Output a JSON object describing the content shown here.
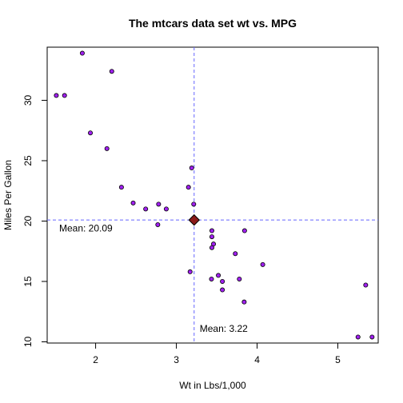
{
  "chart_data": {
    "type": "scatter",
    "title": "The mtcars data set wt vs. MPG",
    "xlabel": "Wt in Lbs/1,000",
    "ylabel": "Miles Per Gallon",
    "xlim": [
      1.4,
      5.5
    ],
    "ylim": [
      9.9,
      34.4
    ],
    "xticks": [
      2,
      3,
      4,
      5
    ],
    "yticks": [
      10,
      15,
      20,
      25,
      30
    ],
    "point_color": "#a020f0",
    "point_fill": "#a020f0",
    "mean_line_color": "#6666ff",
    "mean_marker_color": "#8b1a1a",
    "points": [
      {
        "x": 2.62,
        "y": 21.0
      },
      {
        "x": 2.875,
        "y": 21.0
      },
      {
        "x": 2.32,
        "y": 22.8
      },
      {
        "x": 3.215,
        "y": 21.4
      },
      {
        "x": 3.44,
        "y": 18.7
      },
      {
        "x": 3.46,
        "y": 18.1
      },
      {
        "x": 3.57,
        "y": 14.3
      },
      {
        "x": 3.19,
        "y": 24.4
      },
      {
        "x": 3.15,
        "y": 22.8
      },
      {
        "x": 3.44,
        "y": 19.2
      },
      {
        "x": 3.44,
        "y": 17.8
      },
      {
        "x": 4.07,
        "y": 16.4
      },
      {
        "x": 3.73,
        "y": 17.3
      },
      {
        "x": 3.78,
        "y": 15.2
      },
      {
        "x": 5.25,
        "y": 10.4
      },
      {
        "x": 5.424,
        "y": 10.4
      },
      {
        "x": 5.345,
        "y": 14.7
      },
      {
        "x": 2.2,
        "y": 32.4
      },
      {
        "x": 1.615,
        "y": 30.4
      },
      {
        "x": 1.835,
        "y": 33.9
      },
      {
        "x": 2.465,
        "y": 21.5
      },
      {
        "x": 3.52,
        "y": 15.5
      },
      {
        "x": 3.435,
        "y": 15.2
      },
      {
        "x": 3.84,
        "y": 13.3
      },
      {
        "x": 3.845,
        "y": 19.2
      },
      {
        "x": 1.935,
        "y": 27.3
      },
      {
        "x": 2.14,
        "y": 26.0
      },
      {
        "x": 1.513,
        "y": 30.4
      },
      {
        "x": 3.17,
        "y": 15.8
      },
      {
        "x": 2.77,
        "y": 19.7
      },
      {
        "x": 3.57,
        "y": 15.0
      },
      {
        "x": 2.78,
        "y": 21.4
      }
    ],
    "mean": {
      "x": 3.22,
      "y": 20.09
    },
    "annotations": {
      "mean_y_label": "Mean: 20.09",
      "mean_x_label": "Mean: 3.22"
    }
  }
}
